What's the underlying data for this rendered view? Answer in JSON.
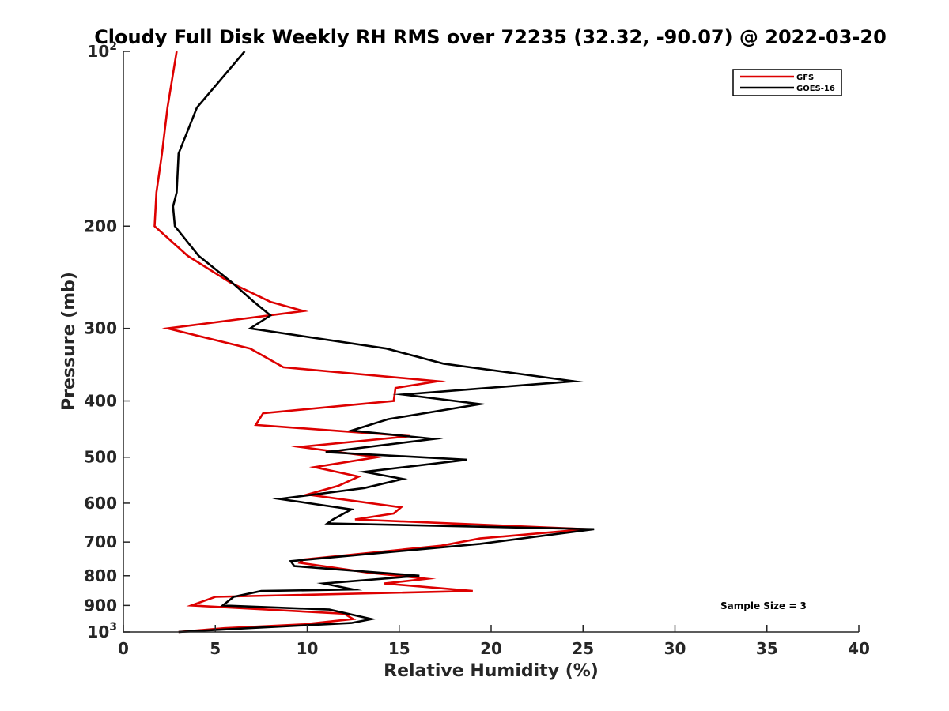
{
  "chart_data": {
    "type": "line",
    "title": "Cloudy Full Disk Weekly RH RMS over 72235 (32.32, -90.07) @ 2022-03-20",
    "xlabel": "Relative Humidity (%)",
    "ylabel": "Pressure (mb)",
    "xlim": [
      0,
      40
    ],
    "ylim": [
      100,
      1000
    ],
    "yscale": "log",
    "y_reversed": true,
    "grid": false,
    "legend_position": "top-right",
    "x_ticks": [
      "0",
      "5",
      "10",
      "15",
      "20",
      "25",
      "30",
      "35",
      "40"
    ],
    "y_ticks": [
      {
        "value": 100,
        "base": "10",
        "exp": "2"
      },
      {
        "value": 200,
        "label": "200"
      },
      {
        "value": 300,
        "label": "300"
      },
      {
        "value": 400,
        "label": "400"
      },
      {
        "value": 500,
        "label": "500"
      },
      {
        "value": 600,
        "label": "600"
      },
      {
        "value": 700,
        "label": "700"
      },
      {
        "value": 800,
        "label": "800"
      },
      {
        "value": 900,
        "label": "900"
      },
      {
        "value": 1000,
        "base": "10",
        "exp": "3"
      }
    ],
    "series": [
      {
        "name": "GFS",
        "color": "#dd0000",
        "points": [
          [
            2.9,
            100
          ],
          [
            2.4,
            125
          ],
          [
            2.1,
            150
          ],
          [
            1.8,
            175
          ],
          [
            1.7,
            200
          ],
          [
            3.5,
            225
          ],
          [
            5.8,
            250
          ],
          [
            8.0,
            270
          ],
          [
            9.8,
            280
          ],
          [
            2.4,
            300
          ],
          [
            6.9,
            325
          ],
          [
            8.7,
            350
          ],
          [
            17.1,
            370
          ],
          [
            14.8,
            380
          ],
          [
            14.7,
            400
          ],
          [
            7.6,
            420
          ],
          [
            7.2,
            440
          ],
          [
            15.6,
            460
          ],
          [
            9.6,
            480
          ],
          [
            13.8,
            500
          ],
          [
            10.4,
            520
          ],
          [
            12.8,
            540
          ],
          [
            11.7,
            560
          ],
          [
            10.0,
            580
          ],
          [
            15.1,
            610
          ],
          [
            14.7,
            625
          ],
          [
            12.6,
            640
          ],
          [
            25.2,
            665
          ],
          [
            19.4,
            690
          ],
          [
            17.3,
            710
          ],
          [
            9.8,
            750
          ],
          [
            9.6,
            760
          ],
          [
            13.3,
            790
          ],
          [
            16.5,
            810
          ],
          [
            14.2,
            825
          ],
          [
            19.0,
            850
          ],
          [
            5.0,
            870
          ],
          [
            3.7,
            900
          ],
          [
            12.0,
            930
          ],
          [
            12.5,
            950
          ],
          [
            9.8,
            970
          ],
          [
            5.5,
            985
          ],
          [
            3.0,
            1000
          ]
        ]
      },
      {
        "name": "GOES-16",
        "color": "#000000",
        "points": [
          [
            6.6,
            100
          ],
          [
            4.0,
            125
          ],
          [
            3.0,
            150
          ],
          [
            2.9,
            175
          ],
          [
            2.7,
            185
          ],
          [
            2.8,
            200
          ],
          [
            4.1,
            225
          ],
          [
            5.9,
            250
          ],
          [
            7.1,
            270
          ],
          [
            8.0,
            285
          ],
          [
            6.9,
            300
          ],
          [
            14.3,
            325
          ],
          [
            17.4,
            345
          ],
          [
            24.5,
            370
          ],
          [
            15.2,
            390
          ],
          [
            19.4,
            405
          ],
          [
            14.4,
            430
          ],
          [
            12.4,
            450
          ],
          [
            16.9,
            465
          ],
          [
            11.0,
            490
          ],
          [
            18.7,
            505
          ],
          [
            13.1,
            530
          ],
          [
            15.2,
            545
          ],
          [
            13.1,
            565
          ],
          [
            8.5,
            590
          ],
          [
            12.4,
            615
          ],
          [
            11.4,
            640
          ],
          [
            11.1,
            650
          ],
          [
            25.6,
            665
          ],
          [
            19.4,
            705
          ],
          [
            9.1,
            755
          ],
          [
            9.3,
            770
          ],
          [
            16.1,
            800
          ],
          [
            10.9,
            825
          ],
          [
            12.5,
            845
          ],
          [
            7.5,
            850
          ],
          [
            6.0,
            870
          ],
          [
            5.4,
            900
          ],
          [
            11.2,
            915
          ],
          [
            13.5,
            950
          ],
          [
            12.4,
            965
          ],
          [
            6.8,
            985
          ],
          [
            3.0,
            1000
          ]
        ]
      }
    ],
    "annotation": "Sample Size = 3"
  }
}
